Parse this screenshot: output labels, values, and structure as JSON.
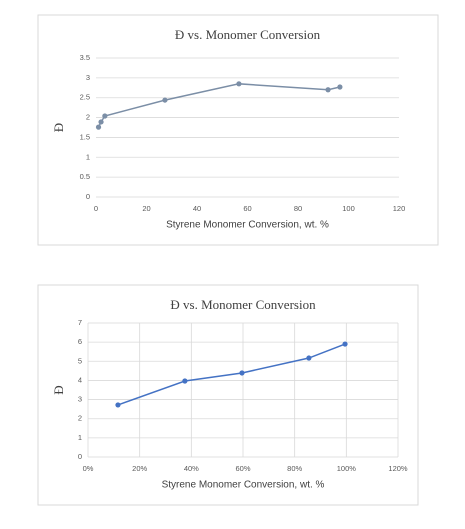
{
  "chart_data": [
    {
      "type": "line",
      "title": "Đ vs. Monomer Conversion",
      "x_label": "Styrene Monomer Conversion, wt. %",
      "y_label": "Đ",
      "x": [
        1,
        2,
        3.5,
        27.3,
        56.6,
        91.9,
        96.6
      ],
      "series": [
        {
          "name": "Đ",
          "color": "#7b8ea6",
          "values": [
            1.76,
            1.89,
            2.04,
            2.44,
            2.85,
            2.7,
            2.77
          ]
        }
      ],
      "xlim": [
        0,
        120
      ],
      "xticks": [
        0,
        20,
        40,
        60,
        80,
        100,
        120
      ],
      "ylim": [
        0,
        3.5
      ],
      "yticks": [
        0,
        0.5,
        1,
        1.5,
        2,
        2.5,
        3,
        3.5
      ],
      "grid": true
    },
    {
      "type": "line",
      "title": "Đ vs. Monomer Conversion",
      "x_label": "Styrene Monomer Conversion, wt. %",
      "y_label": "Đ",
      "x": [
        11.6,
        37.5,
        59.6,
        85.5,
        99.5
      ],
      "series": [
        {
          "name": "Đ",
          "color": "#4472c4",
          "values": [
            2.72,
            3.97,
            4.39,
            5.17,
            5.9
          ]
        }
      ],
      "xlim": [
        0,
        120
      ],
      "xticks": [
        {
          "value": 0,
          "label": "0%"
        },
        {
          "value": 20,
          "label": "20%"
        },
        {
          "value": 40,
          "label": "40%"
        },
        {
          "value": 60,
          "label": "60%"
        },
        {
          "value": 80,
          "label": "80%"
        },
        {
          "value": 100,
          "label": "100%"
        },
        {
          "value": 120,
          "label": "120%"
        }
      ],
      "ylim": [
        0,
        7
      ],
      "yticks": [
        0,
        1,
        2,
        3,
        4,
        5,
        6,
        7
      ],
      "grid": true
    }
  ]
}
